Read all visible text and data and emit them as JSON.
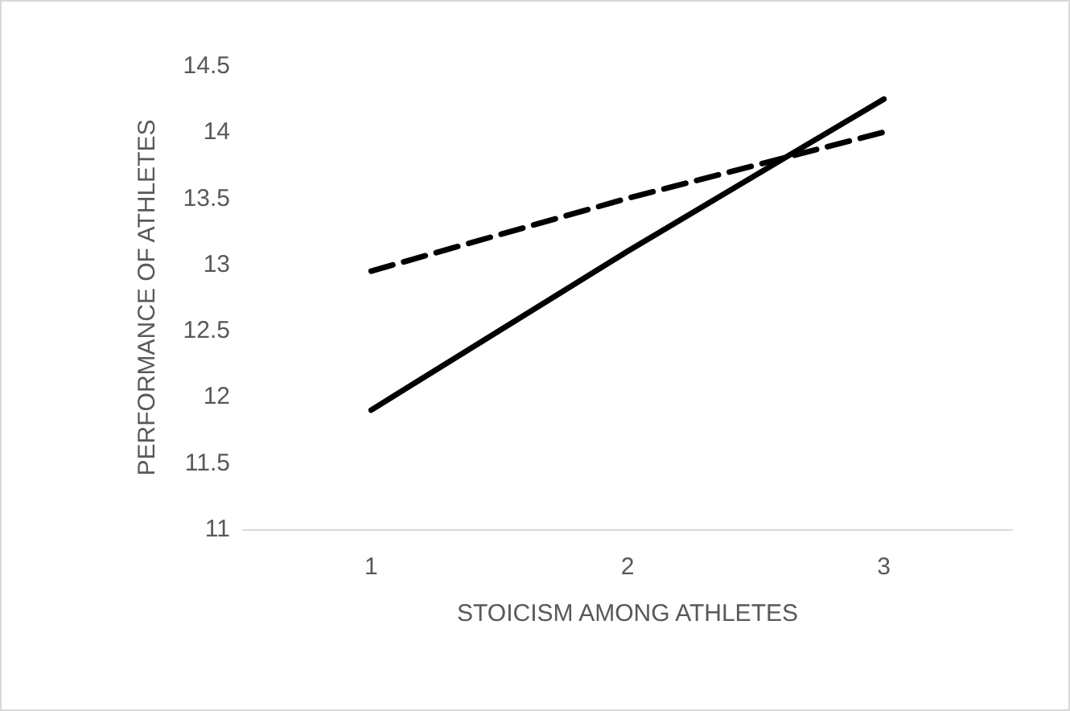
{
  "chart_data": {
    "type": "line",
    "xlabel": "STOICISM AMONG ATHLETES",
    "ylabel": "PERFORMANCE OF ATHLETES",
    "categories": [
      "1",
      "2",
      "3"
    ],
    "series": [
      {
        "color": "#000000",
        "values": [
          11.9,
          13.1,
          14.25
        ],
        "line_style": "solid"
      },
      {
        "color": "#000000",
        "values": [
          12.95,
          13.5,
          14.0
        ],
        "line_style": "dashed"
      }
    ],
    "ylim": [
      11,
      14.5
    ],
    "yticks": [
      11,
      11.5,
      12,
      12.5,
      13,
      13.5,
      14,
      14.5
    ],
    "marker": "none"
  }
}
